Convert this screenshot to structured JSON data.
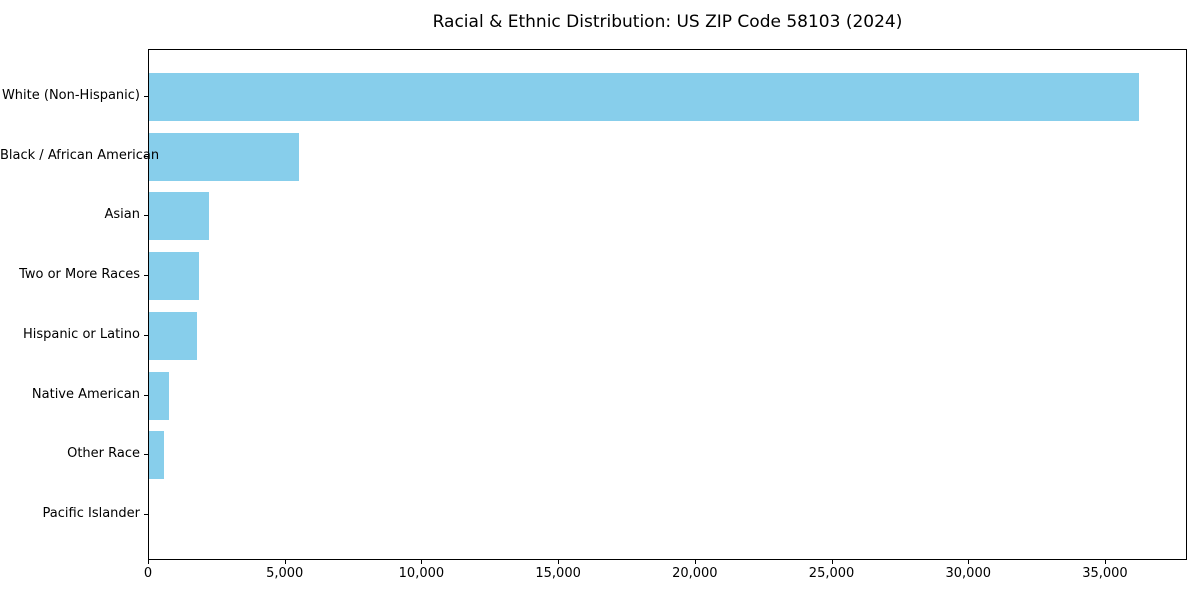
{
  "chart_data": {
    "type": "bar",
    "orientation": "horizontal",
    "title": "Racial & Ethnic Distribution: US ZIP Code 58103 (2024)",
    "categories": [
      "White (Non-Hispanic)",
      "Black / African American",
      "Asian",
      "Two or More Races",
      "Hispanic or Latino",
      "Native American",
      "Other Race",
      "Pacific Islander"
    ],
    "values": [
      36200,
      5500,
      2200,
      1830,
      1770,
      730,
      550,
      0
    ],
    "xlabel": "",
    "ylabel": "",
    "xlim": [
      0,
      38000
    ],
    "xticks": [
      0,
      5000,
      10000,
      15000,
      20000,
      25000,
      30000,
      35000
    ],
    "xtick_labels": [
      "0",
      "5,000",
      "10,000",
      "15,000",
      "20,000",
      "25,000",
      "30,000",
      "35,000"
    ],
    "bar_color": "#87CEEB",
    "axis_color": "#000000",
    "grid": false,
    "legend": null
  }
}
